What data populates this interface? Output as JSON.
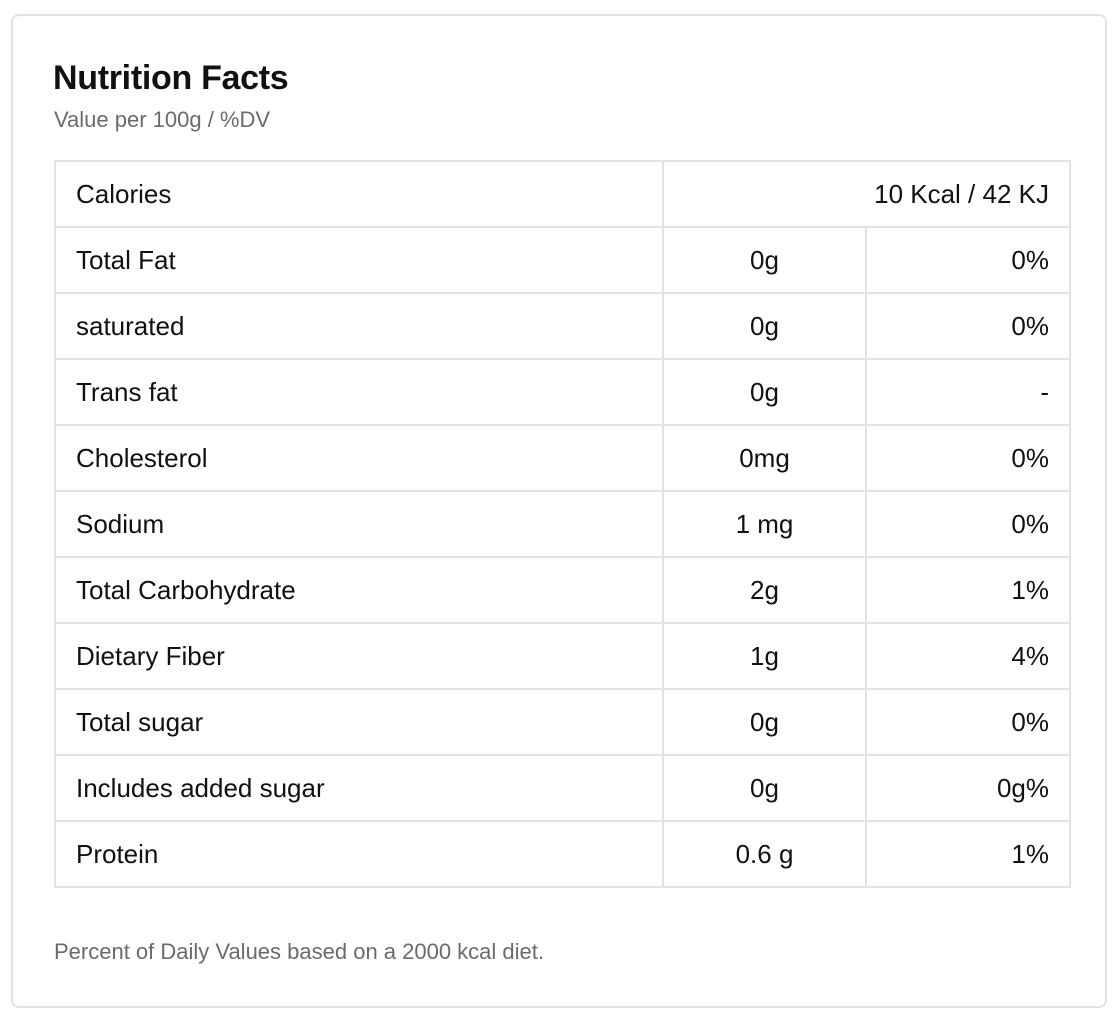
{
  "panel": {
    "title": "Nutrition Facts",
    "subtitle": "Value per 100g / %DV",
    "footnote": "Percent of Daily Values based on a 2000 kcal diet."
  },
  "calories": {
    "label": "Calories",
    "value": "10 Kcal / 42 KJ"
  },
  "nutrients": [
    {
      "label": "Total Fat",
      "amount": "0g",
      "dv": "0%"
    },
    {
      "label": "saturated",
      "amount": "0g",
      "dv": "0%"
    },
    {
      "label": "Trans fat",
      "amount": "0g",
      "dv": "-"
    },
    {
      "label": "Cholesterol",
      "amount": "0mg",
      "dv": "0%"
    },
    {
      "label": "Sodium",
      "amount": "1 mg",
      "dv": "0%"
    },
    {
      "label": "Total Carbohydrate",
      "amount": "2g",
      "dv": "1%"
    },
    {
      "label": "Dietary Fiber",
      "amount": "1g",
      "dv": "4%"
    },
    {
      "label": "Total sugar",
      "amount": "0g",
      "dv": "0%"
    },
    {
      "label": "Includes added sugar",
      "amount": "0g",
      "dv": "0g%"
    },
    {
      "label": "Protein",
      "amount": "0.6 g",
      "dv": "1%"
    }
  ]
}
